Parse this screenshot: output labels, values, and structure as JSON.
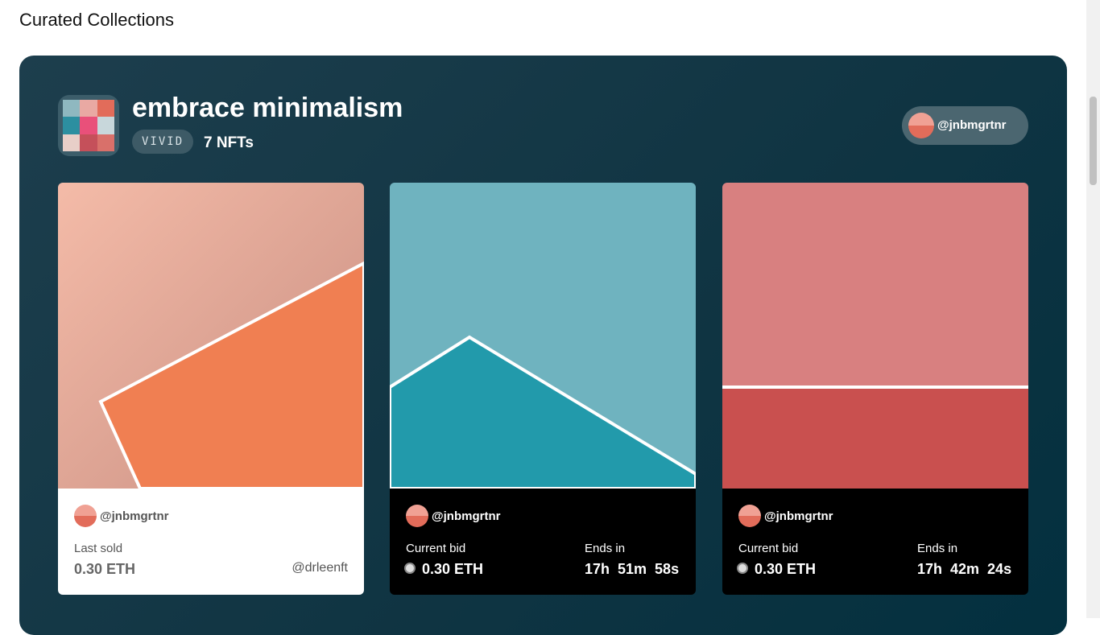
{
  "header": {
    "title": "Curated Collections"
  },
  "collection": {
    "title": "embrace minimalism",
    "tag": "VIVID",
    "count": "7 NFTs",
    "owner": "@jnbmgrtnr"
  },
  "cards": [
    {
      "creator": "@jnbmgrtnr",
      "label": "Last sold",
      "price": "0.30 ETH",
      "holder": "@drleenft"
    },
    {
      "creator": "@jnbmgrtnr",
      "label": "Current bid",
      "price": "0.30 ETH",
      "ends_label": "Ends in",
      "ends": "17h  51m  58s"
    },
    {
      "creator": "@jnbmgrtnr",
      "label": "Current bid",
      "price": "0.30 ETH",
      "ends_label": "Ends in",
      "ends": "17h  42m  24s"
    }
  ]
}
